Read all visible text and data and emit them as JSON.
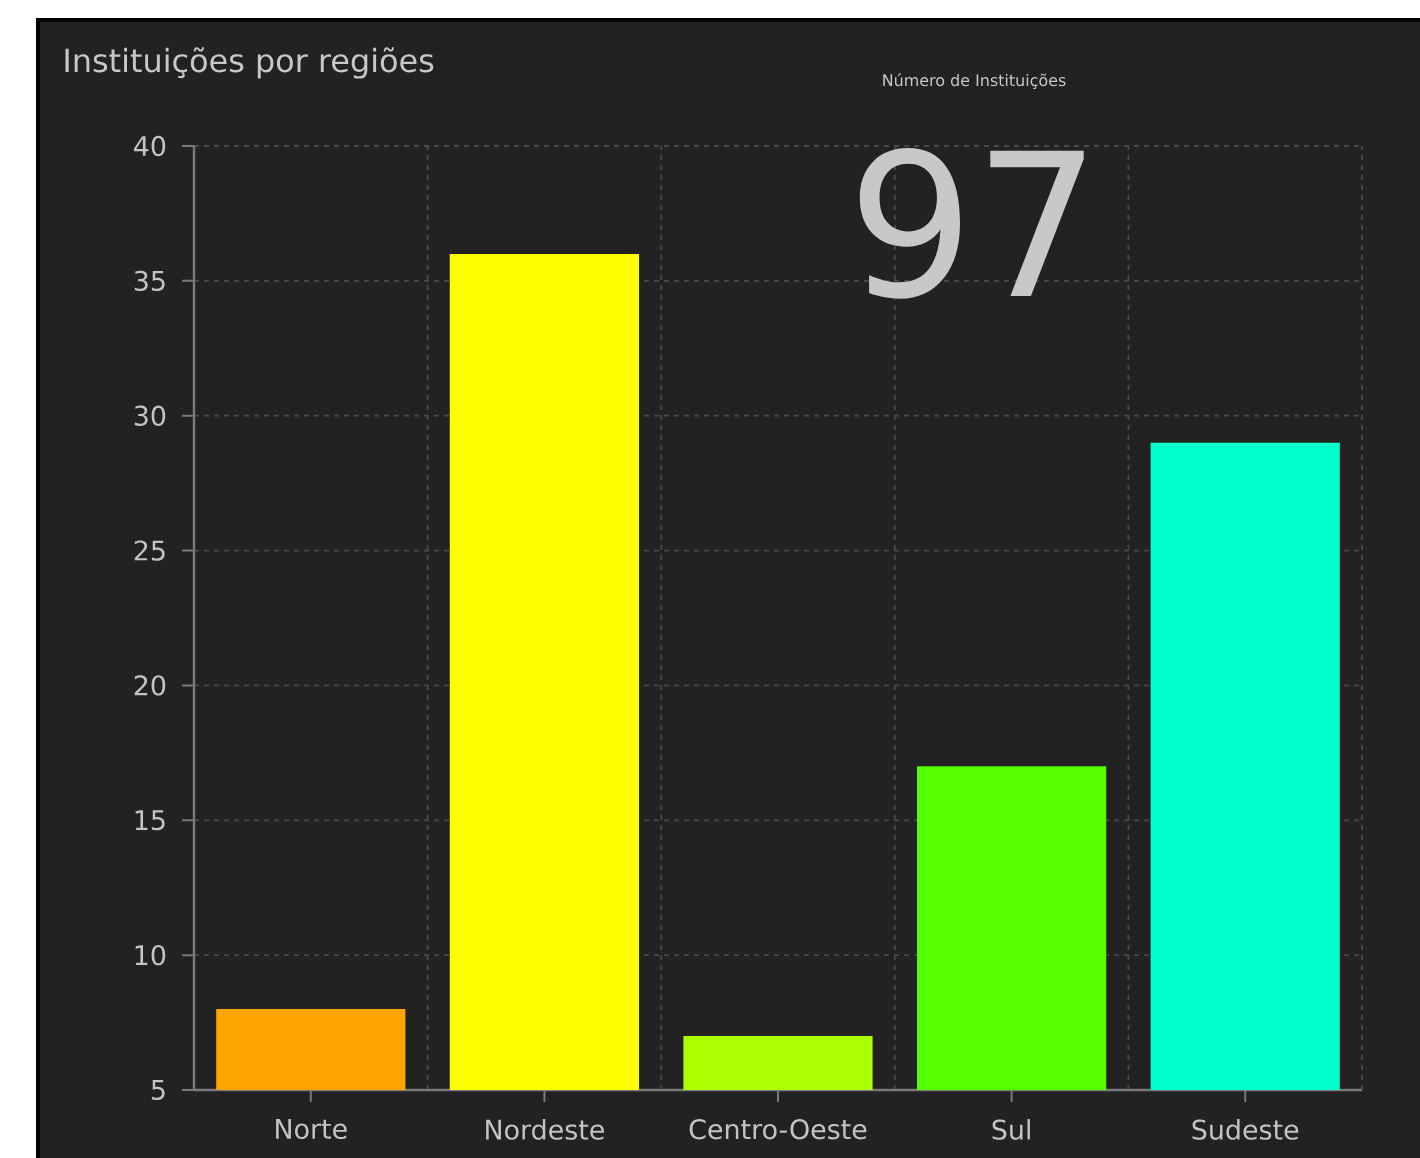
{
  "chart_data": {
    "type": "bar",
    "title": "Instituições por regiões",
    "annotations": [
      "Número de Instituições",
      "97"
    ],
    "categories": [
      "Norte",
      "Nordeste",
      "Centro-Oeste",
      "Sul",
      "Sudeste"
    ],
    "values": [
      8,
      36,
      7,
      17,
      29
    ],
    "colors": [
      "#ffa500",
      "#ffff00",
      "#aaff00",
      "#55ff00",
      "#00ffcc"
    ],
    "ylim": [
      5,
      40
    ],
    "yticks": [
      5,
      10,
      15,
      20,
      25,
      30,
      35,
      40
    ],
    "grid": true
  }
}
